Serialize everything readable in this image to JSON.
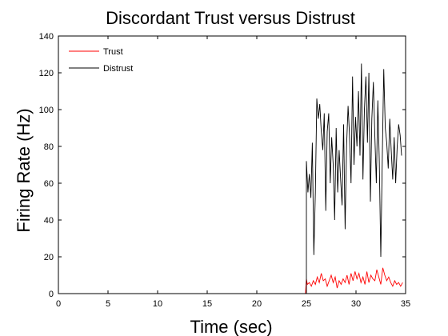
{
  "chart_data": {
    "type": "line",
    "title": "Discordant Trust versus Distrust",
    "xlabel": "Time (sec)",
    "ylabel": "Firing Rate (Hz)",
    "xlim": [
      0,
      35
    ],
    "ylim": [
      0,
      140
    ],
    "x_ticks": [
      "0",
      "5",
      "10",
      "15",
      "20",
      "25",
      "30",
      "35"
    ],
    "y_ticks": [
      "0",
      "20",
      "40",
      "60",
      "80",
      "100",
      "120",
      "140"
    ],
    "grid": false,
    "legend_position": "top-left",
    "series": [
      {
        "name": "Trust",
        "color": "#ff0000",
        "points": [
          [
            0,
            4
          ],
          [
            0,
            0
          ],
          [
            24.9,
            0
          ],
          [
            25.0,
            8
          ],
          [
            25.1,
            5
          ],
          [
            25.3,
            6
          ],
          [
            25.5,
            4
          ],
          [
            25.7,
            7
          ],
          [
            25.9,
            5
          ],
          [
            26.1,
            9
          ],
          [
            26.3,
            6
          ],
          [
            26.5,
            11
          ],
          [
            26.7,
            7
          ],
          [
            26.9,
            8
          ],
          [
            27.1,
            4
          ],
          [
            27.3,
            7
          ],
          [
            27.5,
            10
          ],
          [
            27.7,
            6
          ],
          [
            27.9,
            9
          ],
          [
            28.1,
            3
          ],
          [
            28.3,
            7
          ],
          [
            28.5,
            5
          ],
          [
            28.7,
            8
          ],
          [
            28.9,
            6
          ],
          [
            29.1,
            10
          ],
          [
            29.3,
            5
          ],
          [
            29.5,
            11
          ],
          [
            29.7,
            7
          ],
          [
            29.9,
            12
          ],
          [
            30.1,
            8
          ],
          [
            30.3,
            11
          ],
          [
            30.5,
            6
          ],
          [
            30.7,
            9
          ],
          [
            30.9,
            5
          ],
          [
            31.1,
            12
          ],
          [
            31.3,
            6
          ],
          [
            31.5,
            10
          ],
          [
            31.7,
            8
          ],
          [
            31.9,
            7
          ],
          [
            32.1,
            13
          ],
          [
            32.3,
            9
          ],
          [
            32.5,
            5
          ],
          [
            32.7,
            14
          ],
          [
            32.9,
            10
          ],
          [
            33.1,
            7
          ],
          [
            33.3,
            9
          ],
          [
            33.5,
            6
          ],
          [
            33.7,
            4
          ],
          [
            33.9,
            7
          ],
          [
            34.1,
            5
          ],
          [
            34.3,
            6
          ],
          [
            34.5,
            4
          ],
          [
            34.7,
            6
          ]
        ]
      },
      {
        "name": "Distrust",
        "color": "#000000",
        "points": [
          [
            25.0,
            0
          ],
          [
            25.0,
            72
          ],
          [
            25.15,
            55
          ],
          [
            25.3,
            65
          ],
          [
            25.45,
            52
          ],
          [
            25.6,
            82
          ],
          [
            25.75,
            21
          ],
          [
            25.9,
            55
          ],
          [
            26.05,
            106
          ],
          [
            26.2,
            95
          ],
          [
            26.35,
            103
          ],
          [
            26.5,
            88
          ],
          [
            26.65,
            78
          ],
          [
            26.8,
            98
          ],
          [
            26.95,
            45
          ],
          [
            27.1,
            88
          ],
          [
            27.25,
            98
          ],
          [
            27.4,
            60
          ],
          [
            27.55,
            85
          ],
          [
            27.7,
            70
          ],
          [
            27.85,
            40
          ],
          [
            28.0,
            90
          ],
          [
            28.15,
            55
          ],
          [
            28.3,
            78
          ],
          [
            28.45,
            62
          ],
          [
            28.6,
            48
          ],
          [
            28.75,
            92
          ],
          [
            28.9,
            35
          ],
          [
            29.05,
            80
          ],
          [
            29.2,
            102
          ],
          [
            29.35,
            86
          ],
          [
            29.5,
            60
          ],
          [
            29.65,
            118
          ],
          [
            29.8,
            70
          ],
          [
            29.95,
            96
          ],
          [
            30.1,
            80
          ],
          [
            30.25,
            110
          ],
          [
            30.4,
            75
          ],
          [
            30.55,
            125
          ],
          [
            30.7,
            62
          ],
          [
            30.85,
            100
          ],
          [
            31.0,
            118
          ],
          [
            31.15,
            82
          ],
          [
            31.3,
            120
          ],
          [
            31.45,
            50
          ],
          [
            31.6,
            95
          ],
          [
            31.75,
            115
          ],
          [
            31.9,
            85
          ],
          [
            32.05,
            60
          ],
          [
            32.2,
            105
          ],
          [
            32.35,
            72
          ],
          [
            32.5,
            20
          ],
          [
            32.65,
            75
          ],
          [
            32.8,
            122
          ],
          [
            32.95,
            90
          ],
          [
            33.1,
            82
          ],
          [
            33.25,
            68
          ],
          [
            33.4,
            95
          ],
          [
            33.55,
            78
          ],
          [
            33.7,
            62
          ],
          [
            33.85,
            85
          ],
          [
            34.0,
            60
          ],
          [
            34.15,
            80
          ],
          [
            34.3,
            92
          ],
          [
            34.45,
            86
          ],
          [
            34.6,
            75
          ]
        ]
      }
    ]
  }
}
